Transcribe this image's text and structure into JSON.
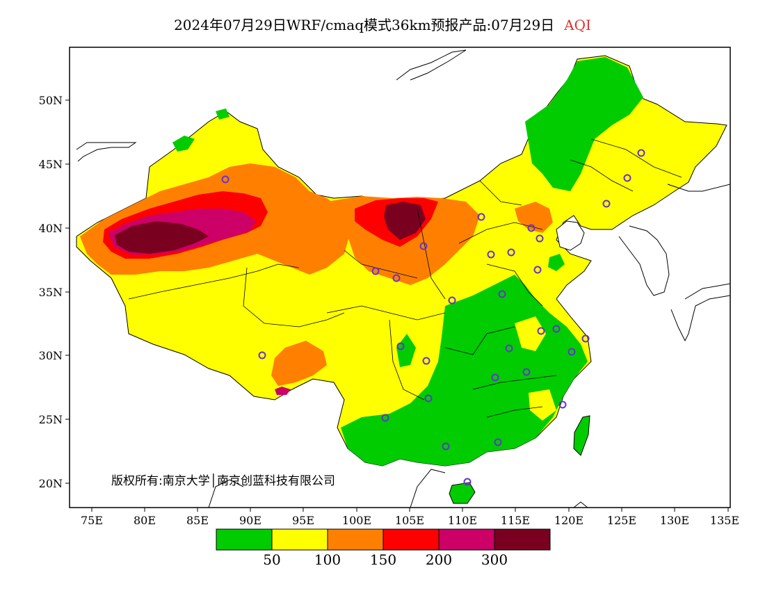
{
  "title": {
    "main": "2024年07月29日WRF/cmaq模式36km预报产品:07月29日",
    "variable": "AQI"
  },
  "copyright": "版权所有:南京大学│南京创蓝科技有限公司",
  "axes": {
    "y_ticks": [
      "50N",
      "45N",
      "40N",
      "35N",
      "30N",
      "25N",
      "20N"
    ],
    "x_ticks": [
      "75E",
      "80E",
      "85E",
      "90E",
      "95E",
      "100E",
      "105E",
      "110E",
      "115E",
      "120E",
      "125E",
      "130E",
      "135E"
    ]
  },
  "legend": {
    "colors": [
      "#00cc00",
      "#ffff00",
      "#ff8000",
      "#ff0000",
      "#cc0066",
      "#7a0020"
    ],
    "labels": [
      "50",
      "100",
      "150",
      "200",
      "300"
    ]
  },
  "colors": {
    "good": "#00cc00",
    "moderate": "#ffff00",
    "sensitive": "#ff8000",
    "unhealthy": "#ff0000",
    "very_unhealthy": "#cc0066",
    "hazardous": "#7a0020",
    "city_marker": "#6633cc"
  }
}
